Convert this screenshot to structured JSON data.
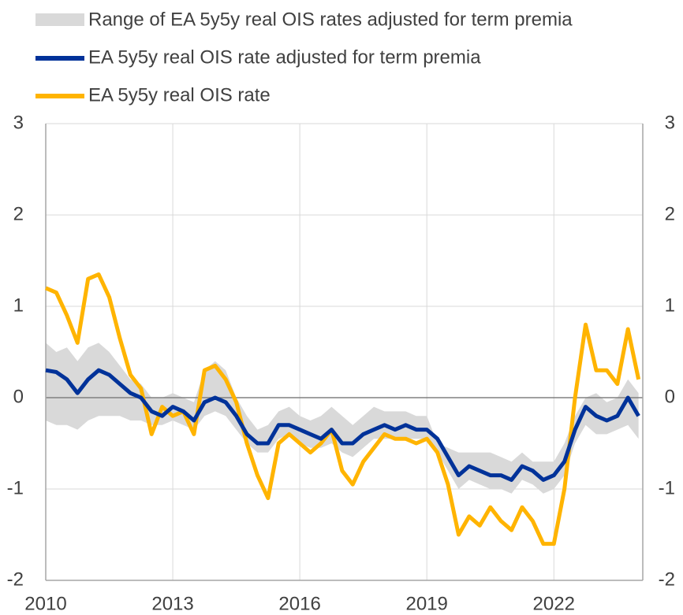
{
  "chart_data": {
    "type": "line",
    "x": [
      2010,
      2010.25,
      2010.5,
      2010.75,
      2011,
      2011.25,
      2011.5,
      2011.75,
      2012,
      2012.25,
      2012.5,
      2012.75,
      2013,
      2013.25,
      2013.5,
      2013.75,
      2014,
      2014.25,
      2014.5,
      2014.75,
      2015,
      2015.25,
      2015.5,
      2015.75,
      2016,
      2016.25,
      2016.5,
      2016.75,
      2017,
      2017.25,
      2017.5,
      2017.75,
      2018,
      2018.25,
      2018.5,
      2018.75,
      2019,
      2019.25,
      2019.5,
      2019.75,
      2020,
      2020.25,
      2020.5,
      2020.75,
      2021,
      2021.25,
      2021.5,
      2021.75,
      2022,
      2022.25,
      2022.5,
      2022.75,
      2023,
      2023.25,
      2023.5,
      2023.75,
      2024
    ],
    "band": {
      "name": "Range of EA 5y5y real OIS rates adjusted for term premia",
      "color": "#d9d9d9",
      "upper": [
        0.6,
        0.5,
        0.55,
        0.4,
        0.55,
        0.6,
        0.5,
        0.35,
        0.2,
        0.15,
        0.0,
        0.0,
        0.05,
        0.0,
        -0.05,
        0.3,
        0.4,
        0.3,
        0.0,
        -0.2,
        -0.35,
        -0.3,
        -0.15,
        -0.1,
        -0.2,
        -0.25,
        -0.2,
        -0.1,
        -0.2,
        -0.3,
        -0.2,
        -0.1,
        -0.15,
        -0.15,
        -0.15,
        -0.2,
        -0.2,
        -0.5,
        -0.55,
        -0.6,
        -0.6,
        -0.6,
        -0.6,
        -0.65,
        -0.7,
        -0.6,
        -0.7,
        -0.7,
        -0.7,
        -0.5,
        -0.2,
        0.0,
        0.05,
        -0.05,
        0.0,
        0.2,
        0.05
      ],
      "lower": [
        -0.25,
        -0.3,
        -0.3,
        -0.35,
        -0.25,
        -0.2,
        -0.2,
        -0.2,
        -0.25,
        -0.25,
        -0.3,
        -0.3,
        -0.25,
        -0.3,
        -0.35,
        -0.2,
        -0.15,
        -0.2,
        -0.35,
        -0.5,
        -0.6,
        -0.6,
        -0.45,
        -0.4,
        -0.5,
        -0.55,
        -0.55,
        -0.5,
        -0.6,
        -0.65,
        -0.55,
        -0.45,
        -0.45,
        -0.45,
        -0.45,
        -0.45,
        -0.45,
        -0.6,
        -0.8,
        -1.0,
        -0.9,
        -0.95,
        -1.0,
        -1.0,
        -1.05,
        -0.9,
        -0.95,
        -1.05,
        -1.0,
        -0.85,
        -0.5,
        -0.3,
        -0.4,
        -0.4,
        -0.35,
        -0.3,
        -0.45
      ]
    },
    "series": [
      {
        "name": "EA 5y5y real OIS rate adjusted for term premia",
        "color": "#003299",
        "values": [
          0.3,
          0.28,
          0.2,
          0.05,
          0.2,
          0.3,
          0.25,
          0.15,
          0.05,
          0.0,
          -0.15,
          -0.2,
          -0.1,
          -0.15,
          -0.25,
          -0.05,
          0.0,
          -0.05,
          -0.2,
          -0.4,
          -0.5,
          -0.5,
          -0.3,
          -0.3,
          -0.35,
          -0.4,
          -0.45,
          -0.35,
          -0.5,
          -0.5,
          -0.4,
          -0.35,
          -0.3,
          -0.35,
          -0.3,
          -0.35,
          -0.35,
          -0.45,
          -0.65,
          -0.85,
          -0.75,
          -0.8,
          -0.85,
          -0.85,
          -0.9,
          -0.75,
          -0.8,
          -0.9,
          -0.85,
          -0.7,
          -0.35,
          -0.1,
          -0.2,
          -0.25,
          -0.2,
          0.0,
          -0.2
        ]
      },
      {
        "name": "EA 5y5y real OIS rate",
        "color": "#ffb400",
        "values": [
          1.2,
          1.15,
          0.9,
          0.6,
          1.3,
          1.35,
          1.1,
          0.65,
          0.25,
          0.1,
          -0.4,
          -0.1,
          -0.2,
          -0.15,
          -0.4,
          0.3,
          0.35,
          0.2,
          -0.05,
          -0.5,
          -0.85,
          -1.1,
          -0.5,
          -0.4,
          -0.5,
          -0.6,
          -0.5,
          -0.35,
          -0.8,
          -0.95,
          -0.7,
          -0.55,
          -0.4,
          -0.45,
          -0.45,
          -0.5,
          -0.45,
          -0.6,
          -0.95,
          -1.5,
          -1.3,
          -1.4,
          -1.2,
          -1.35,
          -1.45,
          -1.2,
          -1.35,
          -1.6,
          -1.6,
          -1.0,
          0.0,
          0.8,
          0.3,
          0.3,
          0.15,
          0.75,
          0.2
        ]
      }
    ],
    "xlim": [
      2010,
      2024.1
    ],
    "xticks": [
      2010,
      2013,
      2016,
      2019,
      2022
    ],
    "ylim": [
      -2,
      3
    ],
    "yticks": [
      -2,
      -1,
      0,
      1,
      2,
      3
    ],
    "y2lim": [
      -2,
      3
    ],
    "y2ticks": [
      -2,
      -1,
      0,
      1,
      2,
      3
    ],
    "grid": true
  }
}
